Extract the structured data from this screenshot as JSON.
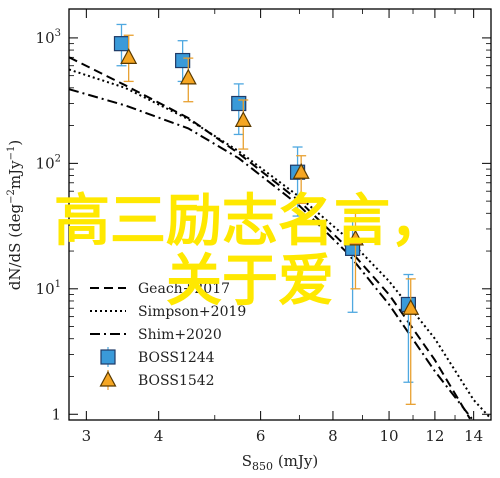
{
  "chart_data": {
    "type": "scatter",
    "xlabel_main": "S",
    "xlabel_sub": "850",
    "xlabel_unit": " (mJy)",
    "ylabel_main": "dN/dS (deg",
    "ylabel_sup": "−2",
    "ylabel_tail": "mJy",
    "ylabel_sup2": "−1",
    "ylabel_end": ")",
    "xscale": "log",
    "yscale": "log",
    "xlim": [
      2.8,
      15
    ],
    "ylim": [
      0.9,
      1700
    ],
    "x_ticks": [
      {
        "value": 3,
        "label": "3"
      },
      {
        "value": 4,
        "label": "4"
      },
      {
        "value": 6,
        "label": "6"
      },
      {
        "value": 8,
        "label": "8"
      },
      {
        "value": 10,
        "label": "10"
      },
      {
        "value": 12,
        "label": "12"
      },
      {
        "value": 14,
        "label": "14"
      }
    ],
    "y_ticks": [
      {
        "value": 1,
        "label_base": "1",
        "label_exp": ""
      },
      {
        "value": 10,
        "label_base": "10",
        "label_exp": "1"
      },
      {
        "value": 100,
        "label_base": "10",
        "label_exp": "2"
      },
      {
        "value": 1000,
        "label_base": "10",
        "label_exp": "3"
      }
    ],
    "legend_position": "lower-left",
    "series": [
      {
        "name": "Geach+2017",
        "kind": "line",
        "dash": "dashed",
        "color": "#000000",
        "x": [
          2.8,
          3.5,
          4.5,
          5.5,
          7,
          8.5,
          10,
          12,
          13.8
        ],
        "y": [
          700,
          420,
          230,
          120,
          50,
          21,
          9,
          2.7,
          0.92
        ]
      },
      {
        "name": "Simpson+2019",
        "kind": "line",
        "dash": "dotted",
        "color": "#000000",
        "x": [
          2.8,
          3.5,
          4.5,
          5.5,
          7,
          8.5,
          10,
          12,
          14,
          15
        ],
        "y": [
          560,
          400,
          225,
          125,
          54,
          25,
          11.5,
          4,
          1.3,
          0.92
        ]
      },
      {
        "name": "Shim+2020",
        "kind": "line",
        "dash": "dashdot",
        "color": "#000000",
        "x": [
          2.8,
          3.5,
          4.5,
          5.5,
          7,
          8.5,
          10,
          12,
          13.9
        ],
        "y": [
          390,
          290,
          190,
          110,
          46,
          19,
          7.5,
          2.2,
          0.92
        ]
      },
      {
        "name": "BOSS1244",
        "kind": "points",
        "marker": "square",
        "color": "#3A9AD9",
        "edge": "#1F3A66",
        "errcolor": "#4FA8E0",
        "points": [
          {
            "x": 3.45,
            "y": 900,
            "lo": 600,
            "hi": 1280
          },
          {
            "x": 4.4,
            "y": 660,
            "lo": 450,
            "hi": 950
          },
          {
            "x": 5.5,
            "y": 300,
            "lo": 170,
            "hi": 430
          },
          {
            "x": 6.95,
            "y": 85,
            "lo": 38,
            "hi": 135
          },
          {
            "x": 8.65,
            "y": 21,
            "lo": 6.5,
            "hi": 36
          },
          {
            "x": 10.8,
            "y": 7.5,
            "lo": 1.8,
            "hi": 13
          }
        ]
      },
      {
        "name": "BOSS1542",
        "kind": "points",
        "marker": "triangle",
        "color": "#F5A623",
        "edge": "#5A3A00",
        "errcolor": "#E8A030",
        "points": [
          {
            "x": 3.55,
            "y": 700,
            "lo": 450,
            "hi": 1050
          },
          {
            "x": 4.5,
            "y": 480,
            "lo": 310,
            "hi": 690
          },
          {
            "x": 5.6,
            "y": 220,
            "lo": 130,
            "hi": 320
          },
          {
            "x": 7.05,
            "y": 85,
            "lo": 48,
            "hi": 115
          },
          {
            "x": 8.75,
            "y": 25,
            "lo": 10,
            "hi": 40
          },
          {
            "x": 10.9,
            "y": 7,
            "lo": 1.2,
            "hi": 12
          }
        ]
      }
    ]
  },
  "overlay": {
    "line1": "高三励志名言，",
    "line2": "关于爱"
  }
}
